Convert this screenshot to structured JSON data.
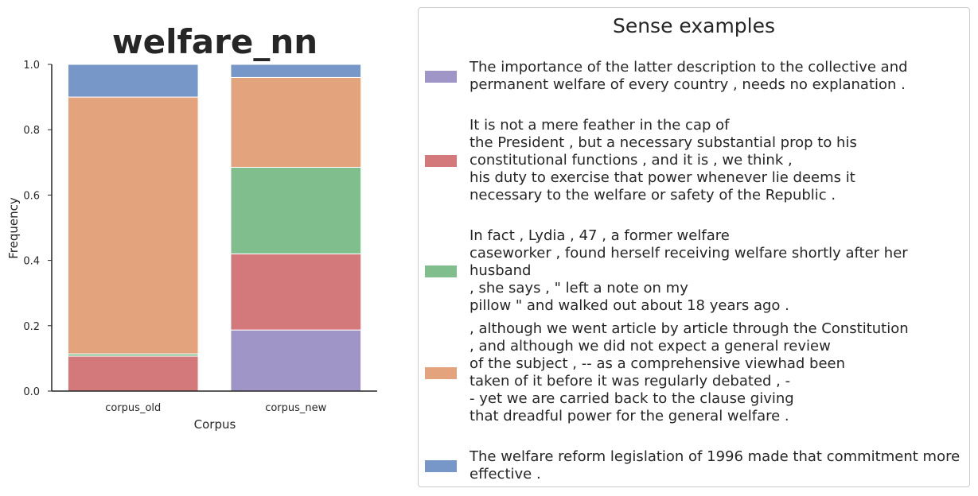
{
  "chart_data": {
    "type": "bar",
    "stacked": true,
    "title": "welfare_nn",
    "xlabel": "Corpus",
    "ylabel": "Frequency",
    "categories": [
      "corpus_old",
      "corpus_new"
    ],
    "ylim": [
      0,
      1.0
    ],
    "yticks": [
      "0.0",
      "0.2",
      "0.4",
      "0.6",
      "0.8",
      "1.0"
    ],
    "grid": false,
    "series": [
      {
        "color": "#9f95c6",
        "values": [
          0.0,
          0.187
        ]
      },
      {
        "color": "#d3787b",
        "values": [
          0.107,
          0.233
        ]
      },
      {
        "color": "#80be8d",
        "values": [
          0.007,
          0.265
        ]
      },
      {
        "color": "#e3a47d",
        "values": [
          0.786,
          0.275
        ]
      },
      {
        "color": "#7897c9",
        "values": [
          0.1,
          0.04
        ]
      }
    ]
  },
  "legend": {
    "title": "Sense examples",
    "placement": "right",
    "entries": [
      {
        "color": "#9f95c6",
        "text": "The importance of the latter description to the collective and\npermanent welfare of every country , needs no explanation ."
      },
      {
        "color": "#d3787b",
        "text": "It is not a mere feather in the cap of\nthe President , but a necessary substantial prop to his\nconstitutional functions , and it is , we think ,\nhis duty to exercise that power whenever lie deems it\nnecessary to the welfare or safety of the Republic ."
      },
      {
        "color": "#80be8d",
        "text": "In fact , Lydia , 47 , a former welfare\ncaseworker , found herself receiving welfare shortly after her husband\n, she says , \" left a note on my\npillow \" and walked out about 18 years ago ."
      },
      {
        "color": "#e3a47d",
        "text": ", although we went article by article through the Constitution\n, and although we did not expect a general review\nof the subject , -- as a comprehensive viewhad been\ntaken of it before it was regularly debated , -\n- yet we are carried back to the clause giving\nthat dreadful power for the general welfare ."
      },
      {
        "color": "#7897c9",
        "text": "The welfare reform legislation of 1996 made that commitment more\neffective ."
      }
    ]
  }
}
